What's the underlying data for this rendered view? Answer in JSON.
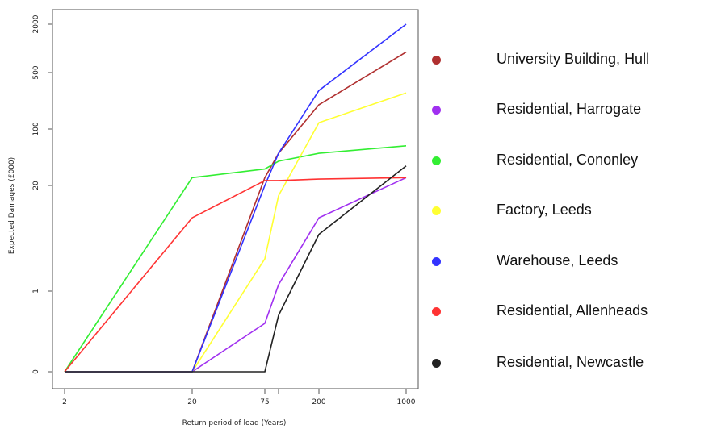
{
  "chart_data": {
    "type": "line",
    "title": "",
    "xlabel": "Return period of load (Years)",
    "ylabel": "Expected Damages (£000)",
    "x_scale": "log",
    "y_scale": "log",
    "x_ticks": [
      "2",
      "20",
      "75",
      "200",
      "1000"
    ],
    "y_ticks": [
      "0",
      "1",
      "20",
      "100",
      "500",
      "2000"
    ],
    "x": [
      2,
      20,
      75,
      100,
      200,
      1000
    ],
    "series": [
      {
        "name": "University Building, Hull",
        "color": "#b03030",
        "values": [
          0,
          0,
          25,
          50,
          200,
          900
        ]
      },
      {
        "name": "Residential, Harrogate",
        "color": "#a030f0",
        "values": [
          0,
          0,
          0.6,
          1.2,
          8,
          25
        ]
      },
      {
        "name": "Residential, Cononley",
        "color": "#33ee33",
        "values": [
          0,
          25,
          32,
          40,
          50,
          62
        ]
      },
      {
        "name": "Factory, Leeds",
        "color": "#ffff33",
        "values": [
          0,
          0,
          2.5,
          15,
          120,
          280
        ]
      },
      {
        "name": "Warehouse, Leeds",
        "color": "#3333ff",
        "values": [
          0,
          0,
          20,
          50,
          300,
          2000
        ]
      },
      {
        "name": "Residential, Allenheads",
        "color": "#ff3333",
        "values": [
          0,
          8,
          23,
          23,
          24,
          25
        ]
      },
      {
        "name": "Residential, Newcastle",
        "color": "#222222",
        "values": [
          0,
          0,
          0,
          0.7,
          5,
          35
        ]
      }
    ],
    "legend_position": "right",
    "grid": false
  }
}
